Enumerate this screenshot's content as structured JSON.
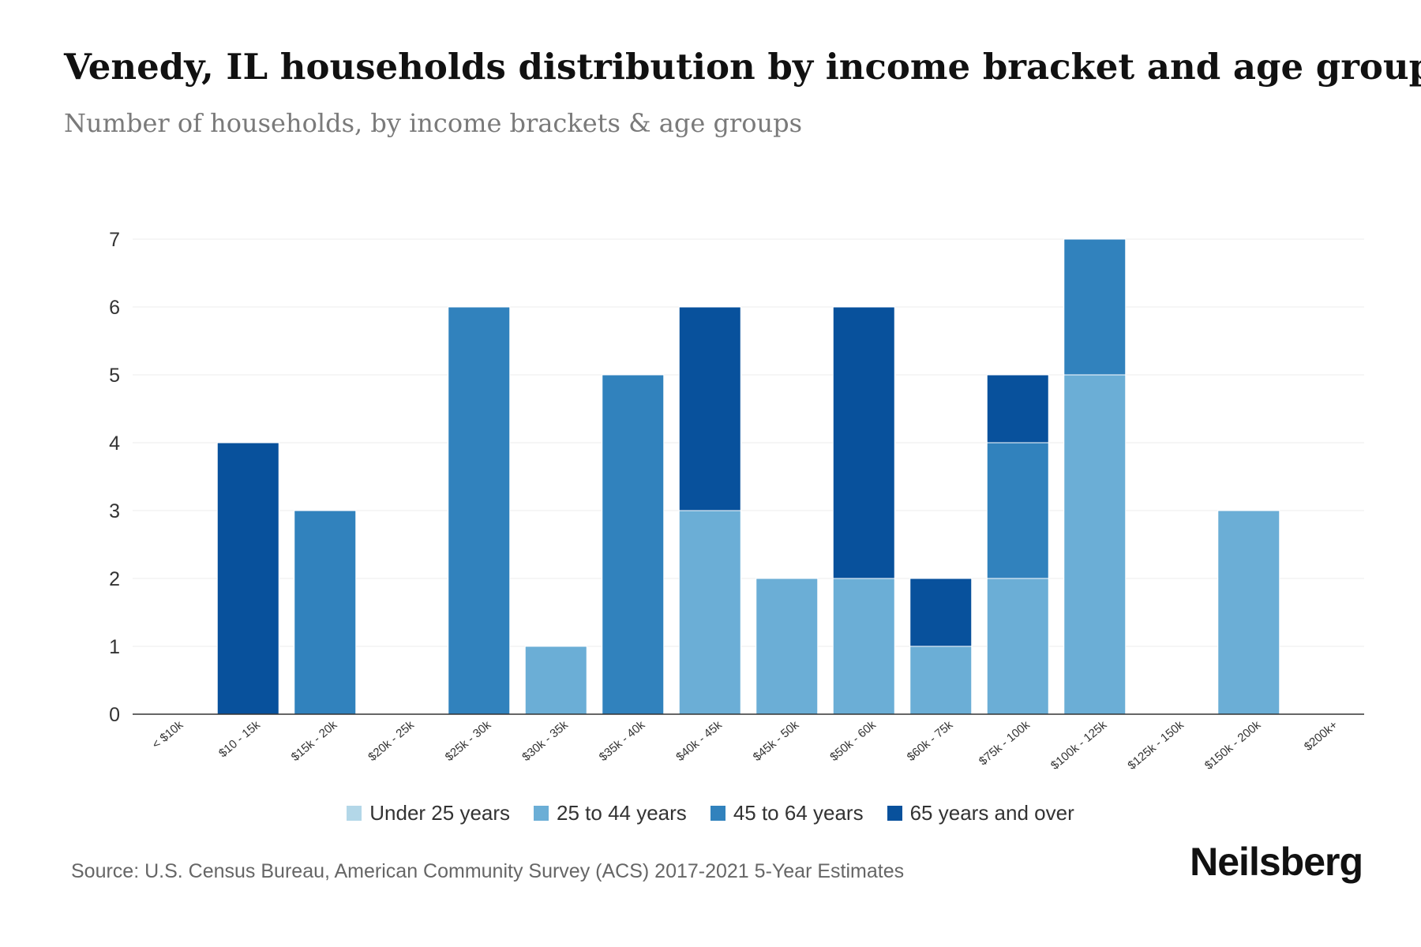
{
  "header": {
    "title": "Venedy, IL households distribution by income bracket and age group",
    "subtitle": "Number of households, by income brackets & age groups"
  },
  "footer": {
    "source": "Source: U.S. Census Bureau, American Community Survey (ACS) 2017-2021 5-Year Estimates",
    "brand": "Neilsberg"
  },
  "chart_data": {
    "type": "bar",
    "stacked": true,
    "title": "Venedy, IL households distribution by income bracket and age group",
    "subtitle": "Number of households, by income brackets & age groups",
    "xlabel": "",
    "ylabel": "",
    "ylim": [
      0,
      7
    ],
    "yticks": [
      0,
      1,
      2,
      3,
      4,
      5,
      6,
      7
    ],
    "grid": true,
    "legend_position": "bottom",
    "categories": [
      "< $10k",
      "$10 - 15k",
      "$15k - 20k",
      "$20k - 25k",
      "$25k - 30k",
      "$30k - 35k",
      "$35k - 40k",
      "$40k - 45k",
      "$45k - 50k",
      "$50k - 60k",
      "$60k - 75k",
      "$75k - 100k",
      "$100k - 125k",
      "$125k - 150k",
      "$150k - 200k",
      "$200k+"
    ],
    "series": [
      {
        "name": "Under 25 years",
        "color": "#b3d7e8",
        "values": [
          0,
          0,
          0,
          0,
          0,
          0,
          0,
          0,
          0,
          0,
          0,
          0,
          0,
          0,
          0,
          0
        ]
      },
      {
        "name": "25 to 44 years",
        "color": "#6baed6",
        "values": [
          0,
          0,
          0,
          0,
          0,
          1,
          0,
          3,
          2,
          2,
          1,
          2,
          5,
          0,
          3,
          0
        ]
      },
      {
        "name": "45 to 64 years",
        "color": "#3182bd",
        "values": [
          0,
          0,
          3,
          0,
          6,
          0,
          5,
          0,
          0,
          0,
          0,
          2,
          2,
          0,
          0,
          0
        ]
      },
      {
        "name": "65 years and over",
        "color": "#08519c",
        "values": [
          0,
          4,
          0,
          0,
          0,
          0,
          0,
          3,
          0,
          4,
          1,
          1,
          0,
          0,
          0,
          0
        ]
      }
    ]
  }
}
